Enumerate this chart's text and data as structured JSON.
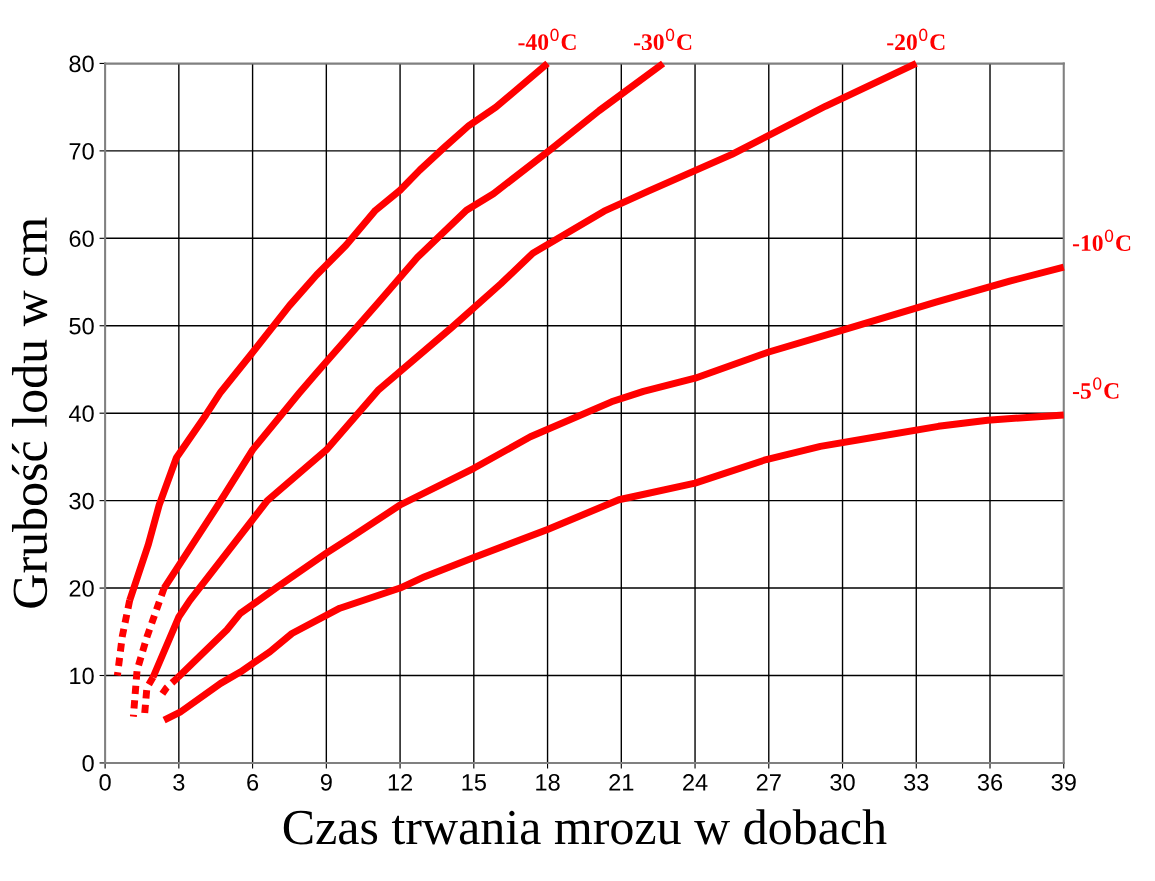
{
  "chart_data": {
    "type": "line",
    "xlabel": "Czas trwania mrozu w dobach",
    "ylabel": "Grubość lodu w cm",
    "xlim": [
      0,
      39
    ],
    "xticks": [
      0,
      3,
      6,
      9,
      12,
      15,
      18,
      21,
      24,
      27,
      30,
      33,
      36,
      39
    ],
    "ylim": [
      0,
      80
    ],
    "yticks": [
      0,
      10,
      20,
      30,
      40,
      50,
      60,
      70,
      80
    ],
    "grid": true,
    "marker": "none",
    "line_style": "solid",
    "series": [
      {
        "name": "-40$^{0}$C",
        "color": "#ff0000",
        "x": [
          1.0,
          1.75,
          2.2,
          2.9,
          4.1,
          4.7,
          5.9,
          7.5,
          8.6,
          9.8,
          11.0,
          12.0,
          12.8,
          13.8,
          14.8,
          15.9,
          18.0
        ],
        "values": [
          18.6,
          24.9,
          29.5,
          34.9,
          39.8,
          42.4,
          46.6,
          52.3,
          55.8,
          59.2,
          63.2,
          65.5,
          67.8,
          70.4,
          72.9,
          75.0,
          80
        ]
      },
      {
        "color": "#ff0000",
        "line_style": "dashed",
        "x": [
          1.0,
          0.7,
          0.5
        ],
        "values": [
          18.6,
          14.5,
          10
        ]
      },
      {
        "name": "-30$^{0}$C",
        "color": "#ff0000",
        "x": [
          2.4,
          4.55,
          6.0,
          7.9,
          8.6,
          11.1,
          12.7,
          14.7,
          15.8,
          18.1,
          20.1,
          22.7
        ],
        "values": [
          20.0,
          29.3,
          35.8,
          42.3,
          44.6,
          52.6,
          57.8,
          63.2,
          65.1,
          70.1,
          74.6,
          80
        ]
      },
      {
        "color": "#ff0000",
        "line_style": "dashed",
        "x": [
          2.4,
          1.7,
          1.3,
          1.15
        ],
        "values": [
          20.0,
          14.4,
          10.6,
          5.3
        ]
      },
      {
        "name": "-20$^{0}$C",
        "color": "#ff0000",
        "x": [
          1.95,
          3.0,
          3.45,
          6.6,
          9.0,
          11.1,
          14.1,
          16.1,
          17.4,
          20.3,
          22.1,
          25.5,
          29.3,
          33.0
        ],
        "values": [
          9.8,
          16.7,
          18.6,
          30.0,
          35.8,
          42.6,
          49.8,
          54.8,
          58.3,
          63.1,
          65.4,
          69.6,
          75.1,
          80
        ]
      },
      {
        "color": "#ff0000",
        "line_style": "dashed",
        "x": [
          1.95,
          1.7,
          1.6
        ],
        "values": [
          9.8,
          8.6,
          5.3
        ]
      },
      {
        "name": "-10$^{0}$C",
        "color": "#ff0000",
        "x": [
          2.97,
          4.95,
          5.5,
          7.0,
          9.0,
          10.0,
          12.0,
          15.0,
          17.3,
          20.6,
          21.9,
          24.0,
          27.0,
          30.0,
          33.8,
          36.8,
          39.0
        ],
        "values": [
          9.8,
          15.2,
          17.1,
          20.1,
          24.0,
          25.8,
          29.5,
          33.7,
          37.3,
          41.3,
          42.5,
          44.0,
          47.0,
          49.5,
          52.7,
          55.1,
          56.7
        ]
      },
      {
        "color": "#ff0000",
        "line_style": "dashed",
        "x": [
          2.97,
          2.5,
          2.3
        ],
        "values": [
          9.8,
          8.6,
          7.8
        ]
      },
      {
        "name": "-5$^{0}$C",
        "color": "#ff0000",
        "x": [
          2.4,
          3.05,
          4.7,
          5.5,
          6.7,
          7.6,
          9.55,
          12.0,
          13.0,
          15.0,
          18.0,
          20.9,
          24.0,
          26.9,
          29.1,
          31.4,
          33.9,
          35.9,
          39.0
        ],
        "values": [
          4.9,
          5.8,
          9.1,
          10.4,
          12.7,
          14.8,
          17.7,
          20.0,
          21.3,
          23.5,
          26.7,
          30.1,
          32.0,
          34.7,
          36.2,
          37.3,
          38.5,
          39.2,
          39.8
        ]
      }
    ]
  }
}
